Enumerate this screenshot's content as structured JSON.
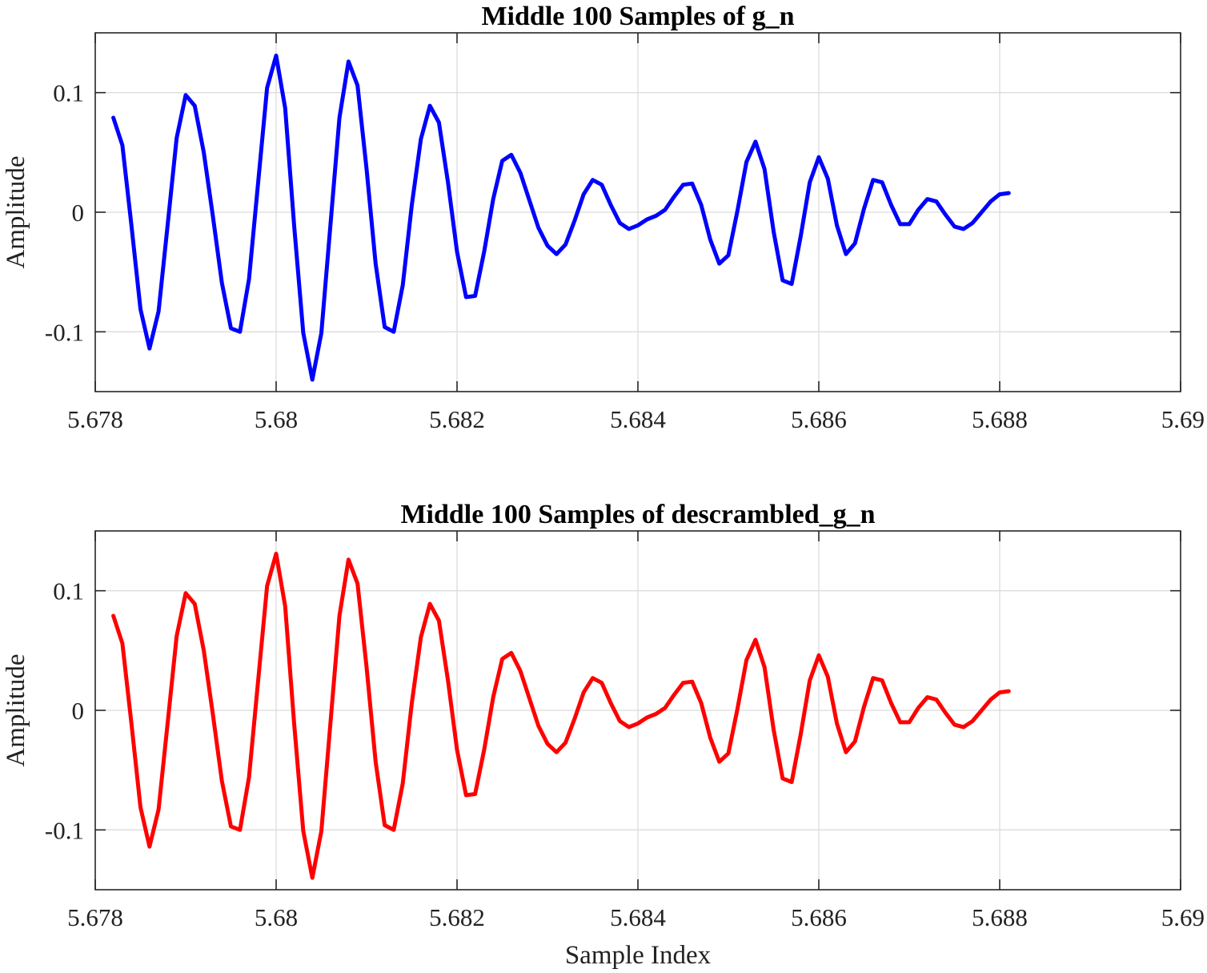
{
  "chart_data": [
    {
      "type": "line",
      "title": "Middle 100 Samples of g_n",
      "xlabel": "",
      "ylabel": "Amplitude",
      "xlim": [
        5.678,
        5.69
      ],
      "ylim": [
        -0.15,
        0.15
      ],
      "xticks": [
        5.678,
        5.68,
        5.682,
        5.684,
        5.686,
        5.688,
        5.69
      ],
      "xtick_labels": [
        "5.678",
        "5.68",
        "5.682",
        "5.684",
        "5.686",
        "5.688",
        "5.69"
      ],
      "yticks": [
        -0.1,
        0,
        0.1
      ],
      "ytick_labels": [
        "-0.1",
        "0",
        "0.1"
      ],
      "grid": true,
      "color": "#0000ff",
      "x_start": 5.6782,
      "x_step": 0.0001,
      "y": [
        0.079,
        0.056,
        -0.011,
        -0.081,
        -0.114,
        -0.083,
        -0.011,
        0.062,
        0.098,
        0.089,
        0.05,
        -0.003,
        -0.059,
        -0.097,
        -0.1,
        -0.056,
        0.024,
        0.104,
        0.131,
        0.087,
        -0.012,
        -0.101,
        -0.14,
        -0.101,
        -0.011,
        0.079,
        0.126,
        0.106,
        0.036,
        -0.043,
        -0.096,
        -0.1,
        -0.061,
        0.006,
        0.061,
        0.089,
        0.075,
        0.025,
        -0.033,
        -0.071,
        -0.07,
        -0.033,
        0.011,
        0.043,
        0.048,
        0.033,
        0.01,
        -0.013,
        -0.028,
        -0.035,
        -0.027,
        -0.007,
        0.015,
        0.027,
        0.023,
        0.006,
        -0.009,
        -0.014,
        -0.011,
        -0.006,
        -0.003,
        0.002,
        0.013,
        0.023,
        0.024,
        0.006,
        -0.023,
        -0.043,
        -0.036,
        0.001,
        0.042,
        0.059,
        0.036,
        -0.016,
        -0.057,
        -0.06,
        -0.02,
        0.025,
        0.046,
        0.028,
        -0.011,
        -0.035,
        -0.026,
        0.003,
        0.027,
        0.025,
        0.006,
        -0.01,
        -0.01,
        0.002,
        0.011,
        0.009,
        -0.002,
        -0.012,
        -0.014,
        -0.009,
        0.0,
        0.009,
        0.015,
        0.016
      ]
    },
    {
      "type": "line",
      "title": "Middle 100 Samples of descrambled_g_n",
      "xlabel": "Sample Index",
      "ylabel": "Amplitude",
      "xlim": [
        5.678,
        5.69
      ],
      "ylim": [
        -0.15,
        0.15
      ],
      "xticks": [
        5.678,
        5.68,
        5.682,
        5.684,
        5.686,
        5.688,
        5.69
      ],
      "xtick_labels": [
        "5.678",
        "5.68",
        "5.682",
        "5.684",
        "5.686",
        "5.688",
        "5.69"
      ],
      "yticks": [
        -0.1,
        0,
        0.1
      ],
      "ytick_labels": [
        "-0.1",
        "0",
        "0.1"
      ],
      "grid": true,
      "color": "#ff0000",
      "x_start": 5.6782,
      "x_step": 0.0001,
      "y": [
        0.079,
        0.056,
        -0.011,
        -0.081,
        -0.114,
        -0.083,
        -0.011,
        0.062,
        0.098,
        0.089,
        0.05,
        -0.003,
        -0.059,
        -0.097,
        -0.1,
        -0.056,
        0.024,
        0.104,
        0.131,
        0.087,
        -0.012,
        -0.101,
        -0.14,
        -0.101,
        -0.011,
        0.079,
        0.126,
        0.106,
        0.036,
        -0.043,
        -0.096,
        -0.1,
        -0.061,
        0.006,
        0.061,
        0.089,
        0.075,
        0.025,
        -0.033,
        -0.071,
        -0.07,
        -0.033,
        0.011,
        0.043,
        0.048,
        0.033,
        0.01,
        -0.013,
        -0.028,
        -0.035,
        -0.027,
        -0.007,
        0.015,
        0.027,
        0.023,
        0.006,
        -0.009,
        -0.014,
        -0.011,
        -0.006,
        -0.003,
        0.002,
        0.013,
        0.023,
        0.024,
        0.006,
        -0.023,
        -0.043,
        -0.036,
        0.001,
        0.042,
        0.059,
        0.036,
        -0.016,
        -0.057,
        -0.06,
        -0.02,
        0.025,
        0.046,
        0.028,
        -0.011,
        -0.035,
        -0.026,
        0.003,
        0.027,
        0.025,
        0.006,
        -0.01,
        -0.01,
        0.002,
        0.011,
        0.009,
        -0.002,
        -0.012,
        -0.014,
        -0.009,
        0.0,
        0.009,
        0.015,
        0.016
      ]
    }
  ]
}
